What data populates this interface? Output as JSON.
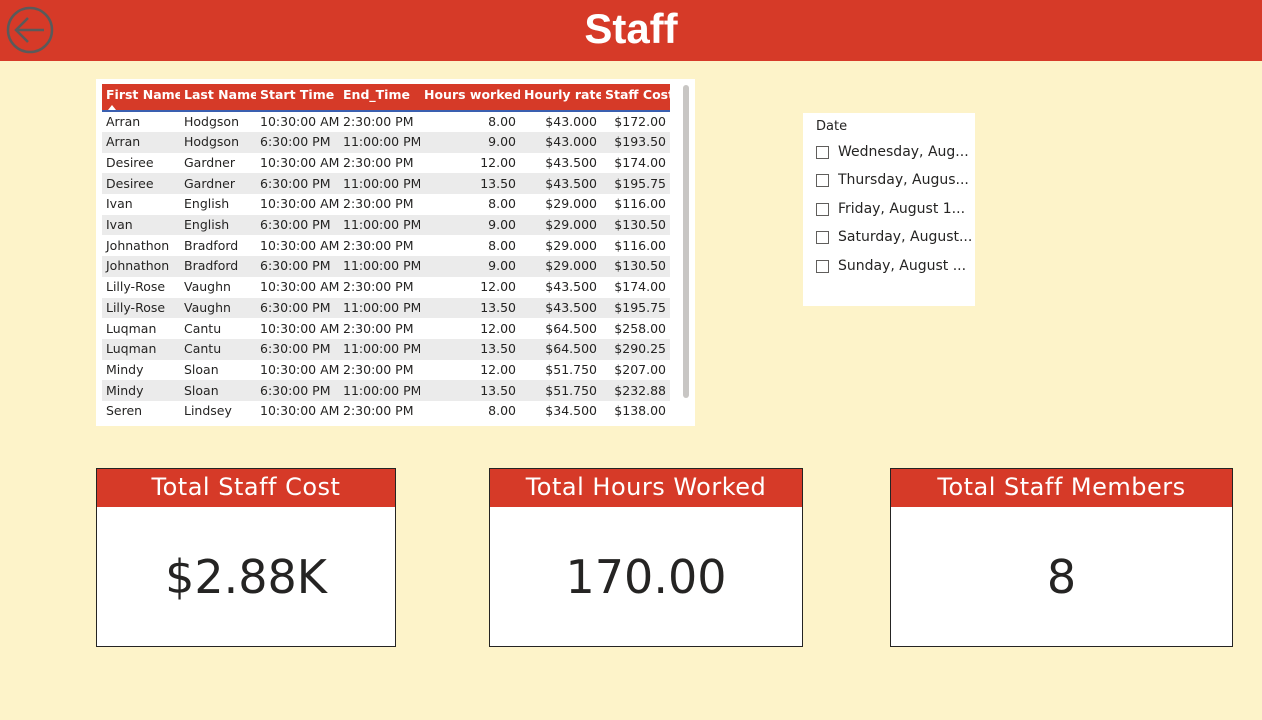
{
  "header": {
    "title": "Staff",
    "back_icon": "back-arrow-icon",
    "background": "#d63a28"
  },
  "table": {
    "columns": [
      "First Name",
      "Last Name",
      "Start Time",
      "End_Time",
      "Hours worked",
      "Hourly rate",
      "Staff Cost"
    ],
    "sorted_column": "First Name",
    "sort_direction": "ascending",
    "rows": [
      [
        "Arran",
        "Hodgson",
        "10:30:00 AM",
        "2:30:00 PM",
        "8.00",
        "$43.000",
        "$172.00"
      ],
      [
        "Arran",
        "Hodgson",
        "6:30:00 PM",
        "11:00:00 PM",
        "9.00",
        "$43.000",
        "$193.50"
      ],
      [
        "Desiree",
        "Gardner",
        "10:30:00 AM",
        "2:30:00 PM",
        "12.00",
        "$43.500",
        "$174.00"
      ],
      [
        "Desiree",
        "Gardner",
        "6:30:00 PM",
        "11:00:00 PM",
        "13.50",
        "$43.500",
        "$195.75"
      ],
      [
        "Ivan",
        "English",
        "10:30:00 AM",
        "2:30:00 PM",
        "8.00",
        "$29.000",
        "$116.00"
      ],
      [
        "Ivan",
        "English",
        "6:30:00 PM",
        "11:00:00 PM",
        "9.00",
        "$29.000",
        "$130.50"
      ],
      [
        "Johnathon",
        "Bradford",
        "10:30:00 AM",
        "2:30:00 PM",
        "8.00",
        "$29.000",
        "$116.00"
      ],
      [
        "Johnathon",
        "Bradford",
        "6:30:00 PM",
        "11:00:00 PM",
        "9.00",
        "$29.000",
        "$130.50"
      ],
      [
        "Lilly-Rose",
        "Vaughn",
        "10:30:00 AM",
        "2:30:00 PM",
        "12.00",
        "$43.500",
        "$174.00"
      ],
      [
        "Lilly-Rose",
        "Vaughn",
        "6:30:00 PM",
        "11:00:00 PM",
        "13.50",
        "$43.500",
        "$195.75"
      ],
      [
        "Luqman",
        "Cantu",
        "10:30:00 AM",
        "2:30:00 PM",
        "12.00",
        "$64.500",
        "$258.00"
      ],
      [
        "Luqman",
        "Cantu",
        "6:30:00 PM",
        "11:00:00 PM",
        "13.50",
        "$64.500",
        "$290.25"
      ],
      [
        "Mindy",
        "Sloan",
        "10:30:00 AM",
        "2:30:00 PM",
        "12.00",
        "$51.750",
        "$207.00"
      ],
      [
        "Mindy",
        "Sloan",
        "6:30:00 PM",
        "11:00:00 PM",
        "13.50",
        "$51.750",
        "$232.88"
      ],
      [
        "Seren",
        "Lindsey",
        "10:30:00 AM",
        "2:30:00 PM",
        "8.00",
        "$34.500",
        "$138.00"
      ]
    ]
  },
  "slicer": {
    "title": "Date",
    "items": [
      {
        "label": "Wednesday, Aug...",
        "checked": false
      },
      {
        "label": "Thursday, Augus...",
        "checked": false
      },
      {
        "label": "Friday, August 1...",
        "checked": false
      },
      {
        "label": "Saturday, August...",
        "checked": false
      },
      {
        "label": "Sunday, August ...",
        "checked": false
      }
    ]
  },
  "cards": [
    {
      "title": "Total Staff Cost",
      "value": "$2.88K"
    },
    {
      "title": "Total Hours Worked",
      "value": "170.00"
    },
    {
      "title": "Total Staff Members",
      "value": "8"
    }
  ],
  "colors": {
    "accent": "#d63a28",
    "page_background": "#fdf3c9",
    "text": "#252423"
  }
}
